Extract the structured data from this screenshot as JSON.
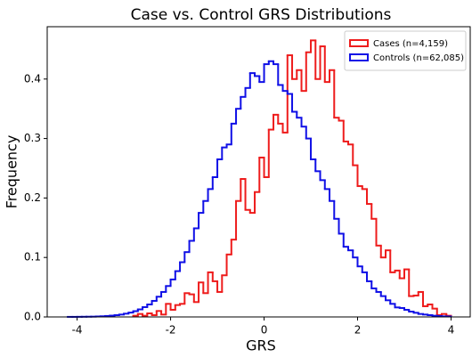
{
  "chart_data": {
    "type": "histogram",
    "title": "Case vs. Control GRS Distributions",
    "x_label": "GRS",
    "y_label": "Frequency",
    "xlim": [
      -4.64,
      4.41
    ],
    "ylim": [
      0,
      0.488
    ],
    "xticks": [
      -4,
      -2,
      0,
      2,
      4
    ],
    "yticks": [
      {
        "value": 0,
        "label": "0.0"
      },
      {
        "value": 0.1,
        "label": "0.1"
      },
      {
        "value": 0.2,
        "label": "0.2"
      },
      {
        "value": 0.3,
        "label": "0.3"
      },
      {
        "value": 0.4,
        "label": "0.4"
      }
    ],
    "legend": "upper right",
    "series": [
      {
        "name": "Cases (n=4,159)",
        "color": "#ee1c1c",
        "bins": [
          -2.8,
          -2.7,
          -2.6,
          -2.5,
          -2.4,
          -2.3,
          -2.2,
          -2.1,
          -2.0,
          -1.9,
          -1.8,
          -1.7,
          -1.6,
          -1.5,
          -1.4,
          -1.3,
          -1.2,
          -1.1,
          -1.0,
          -0.9,
          -0.8,
          -0.7,
          -0.6,
          -0.5,
          -0.4,
          -0.3,
          -0.2,
          -0.1,
          0.0,
          0.1,
          0.2,
          0.3,
          0.4,
          0.5,
          0.6,
          0.7,
          0.8,
          0.9,
          1.0,
          1.1,
          1.2,
          1.3,
          1.4,
          1.5,
          1.6,
          1.7,
          1.8,
          1.9,
          2.0,
          2.1,
          2.2,
          2.3,
          2.4,
          2.5,
          2.6,
          2.7,
          2.8,
          2.9,
          3.0,
          3.1,
          3.2,
          3.3,
          3.4,
          3.5,
          3.6,
          3.7,
          3.8,
          3.9,
          4.0
        ],
        "values": [
          0.002,
          0.005,
          0.002,
          0.006,
          0.003,
          0.01,
          0.004,
          0.022,
          0.012,
          0.02,
          0.022,
          0.04,
          0.038,
          0.025,
          0.058,
          0.04,
          0.075,
          0.06,
          0.042,
          0.07,
          0.105,
          0.13,
          0.195,
          0.232,
          0.18,
          0.175,
          0.21,
          0.268,
          0.235,
          0.315,
          0.34,
          0.325,
          0.31,
          0.44,
          0.4,
          0.415,
          0.38,
          0.445,
          0.465,
          0.4,
          0.455,
          0.395,
          0.415,
          0.335,
          0.33,
          0.295,
          0.29,
          0.255,
          0.22,
          0.215,
          0.19,
          0.165,
          0.12,
          0.1,
          0.112,
          0.075,
          0.078,
          0.065,
          0.08,
          0.035,
          0.036,
          0.042,
          0.018,
          0.021,
          0.014,
          0.003,
          0.005,
          0.002
        ]
      },
      {
        "name": "Controls (n=62,085)",
        "color": "#1010e6",
        "bins": [
          -4.2,
          -4.1,
          -4.0,
          -3.9,
          -3.8,
          -3.7,
          -3.6,
          -3.5,
          -3.4,
          -3.3,
          -3.2,
          -3.1,
          -3.0,
          -2.9,
          -2.8,
          -2.7,
          -2.6,
          -2.5,
          -2.4,
          -2.3,
          -2.2,
          -2.1,
          -2.0,
          -1.9,
          -1.8,
          -1.7,
          -1.6,
          -1.5,
          -1.4,
          -1.3,
          -1.2,
          -1.1,
          -1.0,
          -0.9,
          -0.8,
          -0.7,
          -0.6,
          -0.5,
          -0.4,
          -0.3,
          -0.2,
          -0.1,
          0.0,
          0.1,
          0.2,
          0.3,
          0.4,
          0.5,
          0.6,
          0.7,
          0.8,
          0.9,
          1.0,
          1.1,
          1.2,
          1.3,
          1.4,
          1.5,
          1.6,
          1.7,
          1.8,
          1.9,
          2.0,
          2.1,
          2.2,
          2.3,
          2.4,
          2.5,
          2.6,
          2.7,
          2.8,
          2.9,
          3.0,
          3.1,
          3.2,
          3.3,
          3.4,
          3.5,
          3.6,
          3.7,
          3.8,
          3.9,
          4.0
        ],
        "values": [
          0.0001,
          0.0001,
          0.0002,
          0.0003,
          0.0004,
          0.0005,
          0.0008,
          0.0011,
          0.0016,
          0.0022,
          0.003,
          0.004,
          0.0055,
          0.0073,
          0.0097,
          0.0127,
          0.0165,
          0.021,
          0.027,
          0.034,
          0.042,
          0.052,
          0.063,
          0.077,
          0.092,
          0.109,
          0.128,
          0.149,
          0.175,
          0.195,
          0.215,
          0.235,
          0.265,
          0.285,
          0.29,
          0.325,
          0.35,
          0.37,
          0.385,
          0.41,
          0.405,
          0.395,
          0.425,
          0.43,
          0.425,
          0.39,
          0.38,
          0.375,
          0.345,
          0.335,
          0.32,
          0.3,
          0.265,
          0.245,
          0.23,
          0.215,
          0.195,
          0.165,
          0.14,
          0.118,
          0.112,
          0.1,
          0.085,
          0.075,
          0.06,
          0.048,
          0.042,
          0.035,
          0.028,
          0.022,
          0.016,
          0.015,
          0.012,
          0.009,
          0.007,
          0.005,
          0.004,
          0.003,
          0.002,
          0.0015,
          0.001,
          0.0008
        ]
      }
    ]
  }
}
